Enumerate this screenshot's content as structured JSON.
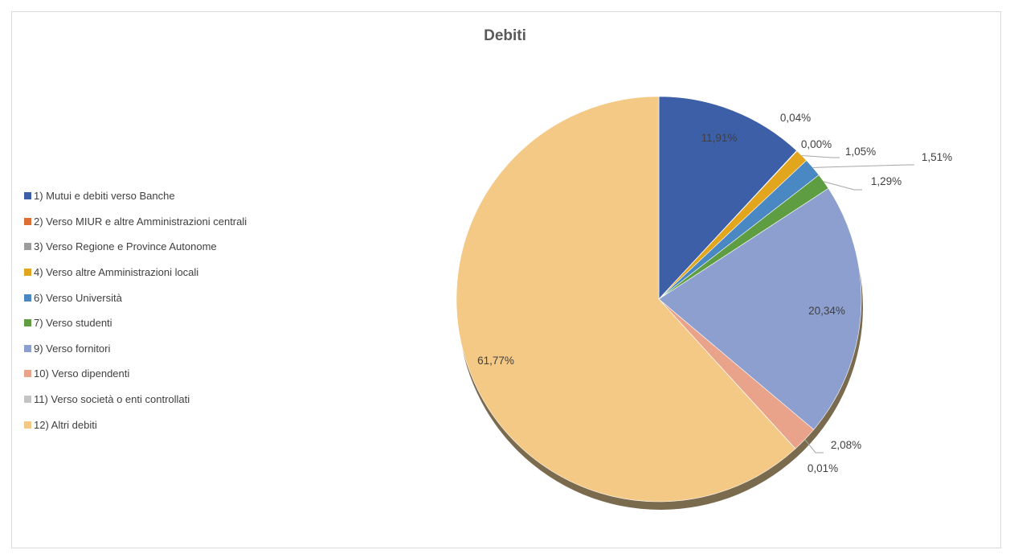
{
  "chart_data": {
    "type": "pie",
    "title": "Debiti",
    "legend_position": "left",
    "slices": [
      {
        "label": "1) Mutui e debiti verso Banche",
        "value": 11.91,
        "value_label": "11,91%",
        "color": "#3d5fa8"
      },
      {
        "label": "2) Verso MIUR e altre Amministrazioni centrali",
        "value": 0.04,
        "value_label": "0,04%",
        "color": "#dc7034"
      },
      {
        "label": "3) Verso Regione e Province Autonome",
        "value": 0.0,
        "value_label": "0,00%",
        "color": "#9c9c9c"
      },
      {
        "label": "4) Verso altre Amministrazioni locali",
        "value": 1.05,
        "value_label": "1,05%",
        "color": "#e2a61e"
      },
      {
        "label": "6) Verso Università",
        "value": 1.51,
        "value_label": "1,51%",
        "color": "#4a88c4"
      },
      {
        "label": "7) Verso studenti",
        "value": 1.29,
        "value_label": "1,29%",
        "color": "#5f9d43"
      },
      {
        "label": "9) Verso fornitori",
        "value": 20.34,
        "value_label": "20,34%",
        "color": "#8c9fcf"
      },
      {
        "label": "10) Verso dipendenti",
        "value": 2.08,
        "value_label": "2,08%",
        "color": "#e9a38a"
      },
      {
        "label": "11) Verso società o enti controllati",
        "value": 0.01,
        "value_label": "0,01%",
        "color": "#c4c4c4"
      },
      {
        "label": "12) Altri debiti",
        "value": 61.77,
        "value_label": "61,77%",
        "color": "#f3c985"
      }
    ]
  }
}
